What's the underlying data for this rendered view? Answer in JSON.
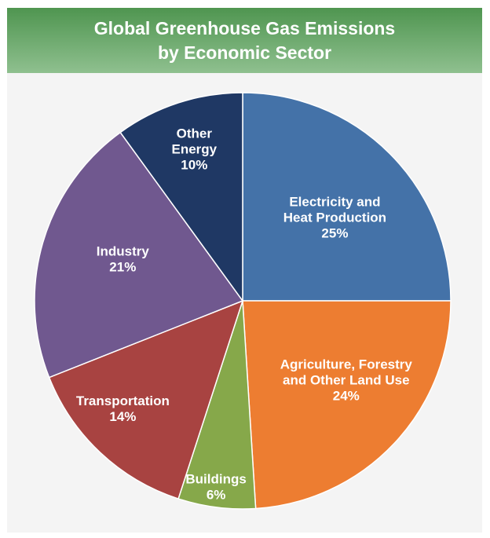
{
  "chart_data": {
    "type": "pie",
    "title": "Global Greenhouse Gas Emissions",
    "subtitle": "by Economic Sector",
    "slices": [
      {
        "label": [
          "Electricity and",
          "Heat Production"
        ],
        "value": 25,
        "display": "25%",
        "color": "#4472a8"
      },
      {
        "label": [
          "Agriculture, Forestry",
          "and Other Land Use"
        ],
        "value": 24,
        "display": "24%",
        "color": "#ed7d31"
      },
      {
        "label": [
          "Buildings"
        ],
        "value": 6,
        "display": "6%",
        "color": "#86a84a"
      },
      {
        "label": [
          "Transportation"
        ],
        "value": 14,
        "display": "14%",
        "color": "#a84341"
      },
      {
        "label": [
          "Industry"
        ],
        "value": 21,
        "display": "21%",
        "color": "#70588f"
      },
      {
        "label": [
          "Other",
          "Energy"
        ],
        "value": 10,
        "display": "10%",
        "color": "#1f3864"
      }
    ]
  }
}
